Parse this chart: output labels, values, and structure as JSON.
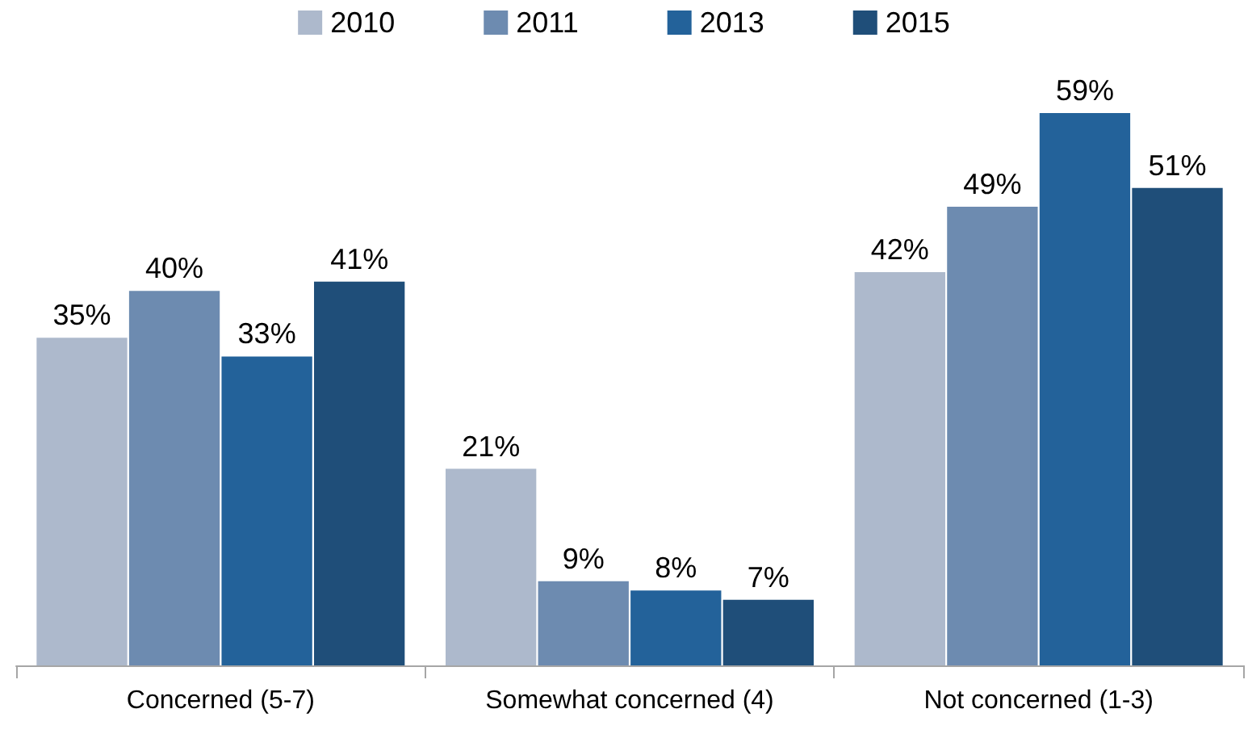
{
  "chart_data": {
    "type": "bar",
    "categories": [
      "Concerned (5-7)",
      "Somewhat concerned (4)",
      "Not concerned (1-3)"
    ],
    "series": [
      {
        "name": "2010",
        "color": "#adb9cc",
        "values": [
          35,
          21,
          42
        ],
        "value_labels": [
          "35%",
          "21%",
          "42%"
        ]
      },
      {
        "name": "2011",
        "color": "#6d8bb0",
        "values": [
          40,
          9,
          49
        ],
        "value_labels": [
          "40%",
          "9%",
          "49%"
        ]
      },
      {
        "name": "2013",
        "color": "#23629a",
        "values": [
          33,
          8,
          59
        ],
        "value_labels": [
          "33%",
          "8%",
          "59%"
        ]
      },
      {
        "name": "2015",
        "color": "#1f4e79",
        "values": [
          41,
          7,
          51
        ],
        "value_labels": [
          "41%",
          "7%",
          "51%"
        ]
      }
    ],
    "tick_labels": "x",
    "legend": "top",
    "grid": false
  }
}
